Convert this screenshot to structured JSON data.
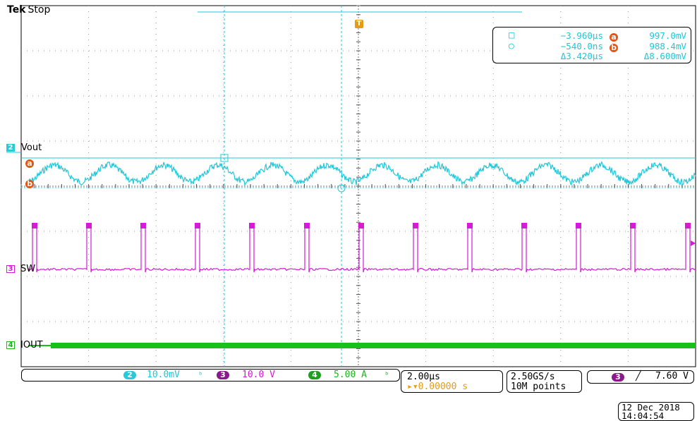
{
  "header": {
    "brand": "Tek",
    "state": "Stop"
  },
  "channels": {
    "ch2": {
      "number": "2",
      "name": "Vout",
      "scale": "10.0mV",
      "color": "#22c8da"
    },
    "ch3": {
      "number": "3",
      "name": "SW",
      "scale": "10.0 V",
      "color": "#d61ad6"
    },
    "ch4": {
      "number": "4",
      "name": "IOUT",
      "scale": "5.00 A",
      "color": "#19c019"
    }
  },
  "cursors": {
    "a_label": "a",
    "b_label": "b",
    "t1": "−3.960µs",
    "t2": "−540.0ns",
    "dt": "Δ3.420µs",
    "v1": "997.0mV",
    "v2": "988.4mV",
    "dv": "Δ8.600mV"
  },
  "horizontal": {
    "scale": "2.00µs",
    "position": "▸▾0.00000 s",
    "trigger_pos_label": "T"
  },
  "acquisition": {
    "sample_rate": "2.50GS/s",
    "record_length": "10M points"
  },
  "trigger": {
    "source": "3",
    "slope": "╱",
    "level": "7.60 V"
  },
  "datetime": {
    "date": "12 Dec 2018",
    "time": "14:04:54"
  },
  "colors": {
    "cursor_orange": "#e25614",
    "grid": "#9a9a9a"
  }
}
